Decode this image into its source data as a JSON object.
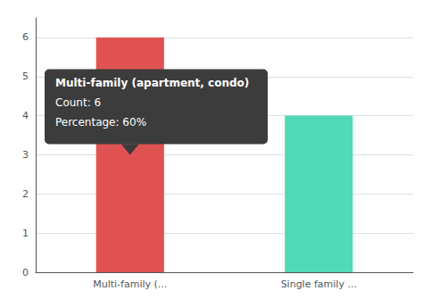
{
  "chart_data": {
    "type": "bar",
    "categories": [
      "Multi-family (...",
      "Single family ..."
    ],
    "values": [
      6,
      4
    ],
    "colors": [
      "#e05252",
      "#52d9b5"
    ],
    "ylim": [
      0,
      6.5
    ],
    "yticks": [
      0,
      1,
      2,
      3,
      4,
      5,
      6
    ],
    "grid": true,
    "annotations": [
      "Multi-family (apartment, condo)",
      "Count: 6",
      "Percentage: 60%"
    ]
  }
}
